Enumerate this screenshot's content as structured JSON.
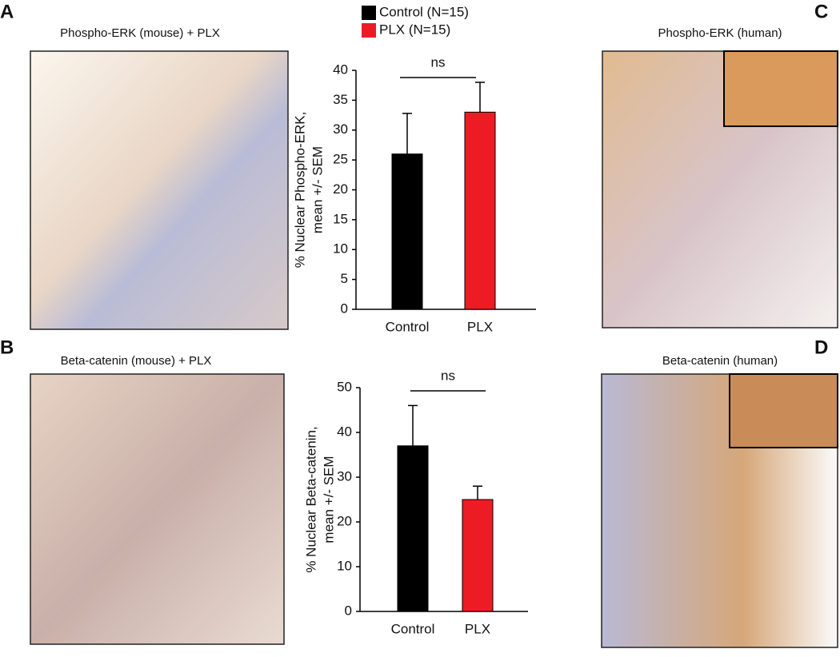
{
  "panels": [
    {
      "label": "A",
      "title": "Phospho-ERK (mouse) + PLX"
    },
    {
      "label": "B",
      "title": "Beta-catenin (mouse) + PLX"
    },
    {
      "label": "C",
      "title": "Phospho-ERK (human)"
    },
    {
      "label": "D",
      "title": "Beta-catenin (human)"
    }
  ],
  "chart_data": [
    {
      "type": "bar",
      "categories": [
        "Control",
        "PLX"
      ],
      "values": [
        26,
        33
      ],
      "errors": [
        6.8,
        5
      ],
      "colors": [
        "#000000",
        "#ed1c24"
      ],
      "legend": [
        "Control (N=15)",
        "PLX (N=15)"
      ],
      "ylabel": [
        "% Nuclear Phospho-ERK,",
        "mean +/- SEM"
      ],
      "annotation": "ns",
      "ylim": [
        0,
        40
      ],
      "yticks": [
        0,
        5,
        10,
        15,
        20,
        25,
        30,
        35,
        40
      ]
    },
    {
      "type": "bar",
      "categories": [
        "Control",
        "PLX"
      ],
      "values": [
        37,
        25
      ],
      "errors": [
        9,
        3
      ],
      "colors": [
        "#000000",
        "#ed1c24"
      ],
      "ylabel": [
        "% Nuclear Beta-catenin,",
        "mean +/- SEM"
      ],
      "annotation": "ns",
      "ylim": [
        0,
        50
      ],
      "yticks": [
        0,
        10,
        20,
        30,
        40,
        50
      ]
    }
  ]
}
